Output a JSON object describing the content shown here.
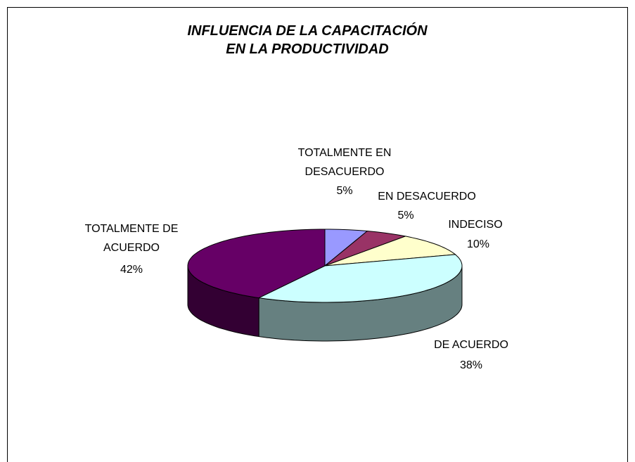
{
  "chart_data": {
    "type": "pie3d",
    "title": "INFLUENCIA DE LA CAPACITACIÓN EN LA PRODUCTIVIDAD",
    "categories": [
      "TOTALMENTE EN DESACUERDO",
      "EN DESACUERDO",
      "INDECISO",
      "DE ACUERDO",
      "TOTALMENTE DE ACUERDO"
    ],
    "values": [
      5,
      5,
      10,
      38,
      42
    ],
    "value_labels": [
      "5%",
      "5%",
      "10%",
      "38%",
      "42%"
    ],
    "colors": [
      "#9999ff",
      "#993366",
      "#ffffcc",
      "#ccffff",
      "#660066"
    ]
  }
}
